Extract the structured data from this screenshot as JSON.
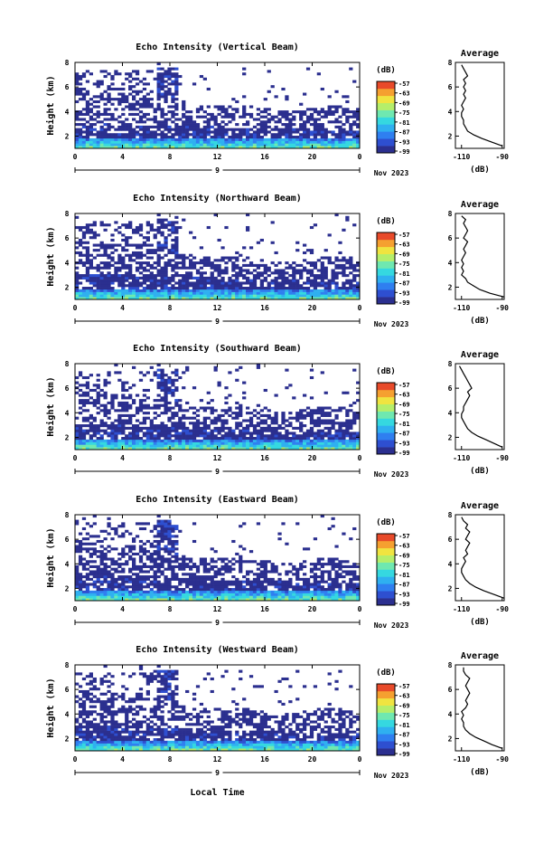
{
  "xlabel": "Local Time",
  "colors": {
    "scale": [
      "#2b2f8f",
      "#2e4fd0",
      "#2f7ff0",
      "#2fb0f0",
      "#35d8e0",
      "#6fe8b0",
      "#b5ee6a",
      "#f0e440",
      "#f5a030",
      "#e84a2a"
    ],
    "blank": "#ffffff",
    "background_echo": "#2b2f8f"
  },
  "chart_data": [
    {
      "type": "heatmap",
      "title": "Echo Intensity (Vertical Beam)",
      "ylabel": "Height (km)",
      "xlim": [
        0,
        24
      ],
      "ylim": [
        1,
        8
      ],
      "x_ticks": [
        "0",
        "4",
        "8",
        "12",
        "16",
        "20",
        "0"
      ],
      "y_ticks": [
        "2",
        "4",
        "6",
        "8"
      ],
      "date_mark": "9",
      "date_label": "Nov 2023",
      "colorbar_label": "(dB)",
      "colorbar_ticks": [
        "-57",
        "-63",
        "-69",
        "-75",
        "-81",
        "-87",
        "-93",
        "-99"
      ],
      "profile": {
        "title": "Average",
        "xlabel": "(dB)",
        "x_ticks": [
          "-110",
          "-90"
        ],
        "xlim": [
          -113,
          -89
        ],
        "y_ticks": [
          "2",
          "4",
          "6",
          "8"
        ],
        "ylim": [
          1,
          8
        ],
        "heights": [
          1.2,
          1.5,
          1.8,
          2.1,
          2.4,
          2.7,
          3.0,
          3.3,
          3.6,
          3.9,
          4.2,
          4.5,
          4.8,
          5.1,
          5.4,
          5.7,
          6.0,
          6.3,
          6.6,
          6.9,
          7.2,
          7.5,
          7.8
        ],
        "values": [
          -90,
          -95,
          -100,
          -104,
          -107,
          -108,
          -109,
          -109,
          -110,
          -110,
          -109,
          -110,
          -109,
          -108,
          -109,
          -108,
          -109,
          -108,
          -109,
          -107,
          -108,
          -109,
          -110
        ]
      }
    },
    {
      "type": "heatmap",
      "title": "Echo Intensity (Northward Beam)",
      "ylabel": "Height (km)",
      "xlim": [
        0,
        24
      ],
      "ylim": [
        1,
        8
      ],
      "x_ticks": [
        "0",
        "4",
        "8",
        "12",
        "16",
        "20",
        "0"
      ],
      "y_ticks": [
        "2",
        "4",
        "6",
        "8"
      ],
      "date_mark": "9",
      "date_label": "Nov 2023",
      "colorbar_label": "(dB)",
      "colorbar_ticks": [
        "-57",
        "-63",
        "-69",
        "-75",
        "-81",
        "-87",
        "-93",
        "-99"
      ],
      "profile": {
        "title": "Average",
        "xlabel": "(dB)",
        "x_ticks": [
          "-110",
          "-90"
        ],
        "xlim": [
          -113,
          -89
        ],
        "y_ticks": [
          "2",
          "4",
          "6",
          "8"
        ],
        "ylim": [
          1,
          8
        ],
        "heights": [
          1.2,
          1.5,
          1.8,
          2.1,
          2.4,
          2.7,
          3.0,
          3.3,
          3.6,
          3.9,
          4.2,
          4.5,
          4.8,
          5.1,
          5.4,
          5.7,
          6.0,
          6.3,
          6.6,
          6.9,
          7.2,
          7.5,
          7.8
        ],
        "values": [
          -89,
          -96,
          -101,
          -104,
          -107,
          -108,
          -110,
          -109,
          -110,
          -109,
          -110,
          -109,
          -108,
          -109,
          -108,
          -107,
          -109,
          -108,
          -107,
          -108,
          -109,
          -108,
          -110
        ]
      }
    },
    {
      "type": "heatmap",
      "title": "Echo Intensity (Southward Beam)",
      "ylabel": "Height (km)",
      "xlim": [
        0,
        24
      ],
      "ylim": [
        1,
        8
      ],
      "x_ticks": [
        "0",
        "4",
        "8",
        "12",
        "16",
        "20",
        "0"
      ],
      "y_ticks": [
        "2",
        "4",
        "6",
        "8"
      ],
      "date_mark": "9",
      "date_label": "Nov 2023",
      "colorbar_label": "(dB)",
      "colorbar_ticks": [
        "-57",
        "-63",
        "-69",
        "-75",
        "-81",
        "-87",
        "-93",
        "-99"
      ],
      "profile": {
        "title": "Average",
        "xlabel": "(dB)",
        "x_ticks": [
          "-110",
          "-90"
        ],
        "xlim": [
          -113,
          -89
        ],
        "y_ticks": [
          "2",
          "4",
          "6",
          "8"
        ],
        "ylim": [
          1,
          8
        ],
        "heights": [
          1.2,
          1.5,
          1.8,
          2.1,
          2.4,
          2.7,
          3.0,
          3.3,
          3.6,
          3.9,
          4.2,
          4.5,
          4.8,
          5.1,
          5.4,
          5.7,
          6.0,
          6.3,
          6.6,
          6.9,
          7.2,
          7.5,
          7.8
        ],
        "values": [
          -90,
          -94,
          -98,
          -102,
          -105,
          -107,
          -108,
          -109,
          -110,
          -110,
          -109,
          -109,
          -108,
          -107,
          -106,
          -107,
          -105,
          -106,
          -107,
          -108,
          -109,
          -110,
          -111
        ]
      }
    },
    {
      "type": "heatmap",
      "title": "Echo Intensity (Eastward Beam)",
      "ylabel": "Height (km)",
      "xlim": [
        0,
        24
      ],
      "ylim": [
        1,
        8
      ],
      "x_ticks": [
        "0",
        "4",
        "8",
        "12",
        "16",
        "20",
        "0"
      ],
      "y_ticks": [
        "2",
        "4",
        "6",
        "8"
      ],
      "date_mark": "9",
      "date_label": "Nov 2023",
      "colorbar_label": "(dB)",
      "colorbar_ticks": [
        "-57",
        "-63",
        "-69",
        "-75",
        "-81",
        "-87",
        "-93",
        "-99"
      ],
      "profile": {
        "title": "Average",
        "xlabel": "(dB)",
        "x_ticks": [
          "-110",
          "-90"
        ],
        "xlim": [
          -113,
          -89
        ],
        "y_ticks": [
          "2",
          "4",
          "6",
          "8"
        ],
        "ylim": [
          1,
          8
        ],
        "heights": [
          1.2,
          1.5,
          1.8,
          2.1,
          2.4,
          2.7,
          3.0,
          3.3,
          3.6,
          3.9,
          4.2,
          4.5,
          4.8,
          5.1,
          5.4,
          5.7,
          6.0,
          6.3,
          6.6,
          6.9,
          7.2,
          7.5,
          7.8
        ],
        "values": [
          -89,
          -94,
          -99,
          -103,
          -106,
          -108,
          -109,
          -110,
          -110,
          -109,
          -108,
          -109,
          -107,
          -108,
          -107,
          -106,
          -108,
          -107,
          -106,
          -108,
          -107,
          -109,
          -110
        ]
      }
    },
    {
      "type": "heatmap",
      "title": "Echo Intensity (Westward Beam)",
      "ylabel": "Height (km)",
      "xlim": [
        0,
        24
      ],
      "ylim": [
        1,
        8
      ],
      "x_ticks": [
        "0",
        "4",
        "8",
        "12",
        "16",
        "20",
        "0"
      ],
      "y_ticks": [
        "2",
        "4",
        "6",
        "8"
      ],
      "date_mark": "9",
      "date_label": "Nov 2023",
      "colorbar_label": "(dB)",
      "colorbar_ticks": [
        "-57",
        "-63",
        "-69",
        "-75",
        "-81",
        "-87",
        "-93",
        "-99"
      ],
      "profile": {
        "title": "Average",
        "xlabel": "(dB)",
        "x_ticks": [
          "-110",
          "-90"
        ],
        "xlim": [
          -113,
          -89
        ],
        "y_ticks": [
          "2",
          "4",
          "6",
          "8"
        ],
        "ylim": [
          1,
          8
        ],
        "heights": [
          1.2,
          1.5,
          1.8,
          2.1,
          2.4,
          2.7,
          3.0,
          3.3,
          3.6,
          3.9,
          4.2,
          4.5,
          4.8,
          5.1,
          5.4,
          5.7,
          6.0,
          6.3,
          6.6,
          6.9,
          7.2,
          7.5,
          7.8
        ],
        "values": [
          -90,
          -95,
          -99,
          -103,
          -106,
          -108,
          -109,
          -109,
          -110,
          -109,
          -110,
          -108,
          -107,
          -108,
          -107,
          -106,
          -107,
          -108,
          -107,
          -106,
          -108,
          -109,
          -109
        ]
      }
    }
  ]
}
